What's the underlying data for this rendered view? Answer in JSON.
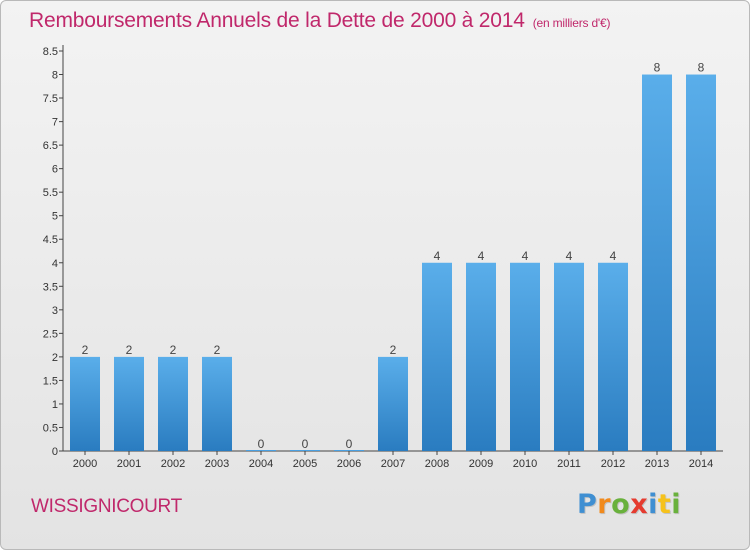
{
  "header": {
    "title": "Remboursements Annuels de la Dette de 2000 à 2014",
    "unit": "(en milliers d'€)"
  },
  "commune": "WISSIGNICOURT",
  "logo": {
    "letters": [
      "P",
      "r",
      "o",
      "x",
      "i",
      "t",
      "i"
    ],
    "colors": [
      "#3f8fd2",
      "#f18a1c",
      "#69b13c",
      "#e53b2f",
      "#3f8fd2",
      "#f6c21b",
      "#69b13c"
    ]
  },
  "chart_data": {
    "type": "bar",
    "title": "Remboursements Annuels de la Dette de 2000 à 2014",
    "ylabel": "(en milliers d'€)",
    "categories": [
      "2000",
      "2001",
      "2002",
      "2003",
      "2004",
      "2005",
      "2006",
      "2007",
      "2008",
      "2009",
      "2010",
      "2011",
      "2012",
      "2013",
      "2014"
    ],
    "values": [
      2,
      2,
      2,
      2,
      0,
      0,
      0,
      2,
      4,
      4,
      4,
      4,
      4,
      8,
      8
    ],
    "data_labels": [
      "2",
      "2",
      "2",
      "2",
      "0",
      "0",
      "0",
      "2",
      "4",
      "4",
      "4",
      "4",
      "4",
      "8",
      "8"
    ],
    "yticks": [
      "0",
      "0.5",
      "1",
      "1.5",
      "2",
      "2.5",
      "3",
      "3.5",
      "4",
      "4.5",
      "5",
      "5.5",
      "6",
      "6.5",
      "7",
      "7.5",
      "8",
      "8.5"
    ],
    "ylim": [
      0,
      8.5
    ],
    "bar_color": "#4a9fe0",
    "grid": false
  }
}
